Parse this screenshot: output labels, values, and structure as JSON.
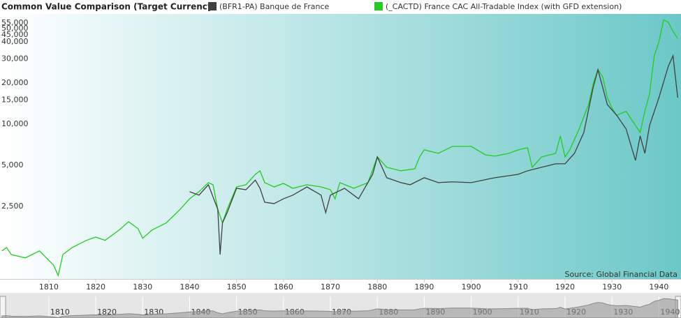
{
  "chart_data": {
    "type": "line",
    "title": "Common Value Comparison (Target Currency)",
    "source": "Source: Global Financial Data",
    "log_scale": true,
    "grid": false,
    "legend": "top",
    "xlim": [
      1799.6,
      1944.7
    ],
    "xticks": [
      1810,
      1820,
      1830,
      1840,
      1850,
      1860,
      1870,
      1880,
      1890,
      1900,
      1910,
      1920,
      1930,
      1940
    ],
    "ylim": [
      736,
      60300
    ],
    "yticks": [
      {
        "value": 2500,
        "label": "2,500"
      },
      {
        "value": 5000,
        "label": "5,000"
      },
      {
        "value": 10000,
        "label": "10,000"
      },
      {
        "value": 15000,
        "label": "15,000"
      },
      {
        "value": 20000,
        "label": "20,000"
      },
      {
        "value": 30000,
        "label": "30,000"
      },
      {
        "value": 40000,
        "label": "40,000"
      },
      {
        "value": 45000,
        "label": "45,000"
      },
      {
        "value": 50000,
        "label": "50,000"
      },
      {
        "value": 55000,
        "label": "55,000"
      }
    ],
    "series": [
      {
        "name": "(_CACTD) France CAC All-Tradable Index (with GFD extension)",
        "color": "#22cc22",
        "x": [
          1800,
          1801,
          1802,
          1805,
          1808,
          1811,
          1812,
          1813,
          1815,
          1818,
          1820,
          1822,
          1825,
          1827,
          1829,
          1830,
          1832,
          1835,
          1838,
          1840,
          1842,
          1844,
          1845,
          1846,
          1847,
          1848,
          1850,
          1852,
          1854,
          1855,
          1856,
          1858,
          1860,
          1862,
          1865,
          1868,
          1870,
          1871,
          1872,
          1875,
          1878,
          1880,
          1882,
          1885,
          1888,
          1889,
          1890,
          1893,
          1896,
          1900,
          1903,
          1905,
          1908,
          1910,
          1912,
          1913,
          1915,
          1918,
          1919,
          1920,
          1921,
          1923,
          1925,
          1926,
          1927,
          1928,
          1929,
          1930,
          1931,
          1933,
          1935,
          1936,
          1937,
          1938,
          1939,
          1940,
          1941,
          1942,
          1943,
          1944
        ],
        "values": [
          1180,
          1250,
          1110,
          1050,
          1180,
          930,
          780,
          1110,
          1250,
          1410,
          1490,
          1410,
          1680,
          1930,
          1720,
          1460,
          1680,
          1890,
          2380,
          2840,
          3200,
          3730,
          3600,
          2380,
          1890,
          2380,
          3470,
          3600,
          4290,
          4550,
          3730,
          3470,
          3680,
          3390,
          3600,
          3470,
          3310,
          2840,
          3730,
          3390,
          3730,
          5750,
          4830,
          4550,
          4710,
          5750,
          6480,
          6110,
          6870,
          6870,
          5960,
          5830,
          6110,
          6480,
          6710,
          4830,
          5750,
          6110,
          8190,
          5750,
          6480,
          9210,
          13900,
          19800,
          25000,
          22200,
          15600,
          13100,
          11600,
          12400,
          9770,
          8690,
          12400,
          16600,
          31600,
          40000,
          58000,
          55600,
          47700,
          42400
        ]
      },
      {
        "name": "(BFR1-PA) Banque de France",
        "color": "#404040",
        "x": [
          1840,
          1842,
          1844,
          1846,
          1846.5,
          1847,
          1848,
          1850,
          1852,
          1854,
          1855,
          1856,
          1858,
          1860,
          1862,
          1865,
          1868,
          1869,
          1870,
          1873,
          1876,
          1879,
          1880,
          1882,
          1885,
          1887,
          1890,
          1893,
          1896,
          1900,
          1905,
          1910,
          1912,
          1915,
          1918,
          1920,
          1922,
          1924,
          1926,
          1927,
          1929,
          1931,
          1933,
          1935,
          1936,
          1937,
          1938,
          1940,
          1942,
          1943,
          1944
        ],
        "values": [
          3200,
          3020,
          3600,
          2380,
          1110,
          1890,
          2250,
          3390,
          3310,
          3890,
          3390,
          2680,
          2620,
          2840,
          3020,
          3470,
          3020,
          2250,
          3020,
          3390,
          2840,
          4290,
          5750,
          4050,
          3730,
          3600,
          4050,
          3730,
          3780,
          3730,
          4050,
          4290,
          4550,
          4830,
          5120,
          5120,
          6110,
          8690,
          18600,
          25000,
          13900,
          11600,
          9210,
          5420,
          8190,
          6110,
          9770,
          15600,
          26500,
          31600,
          15600
        ]
      }
    ]
  }
}
